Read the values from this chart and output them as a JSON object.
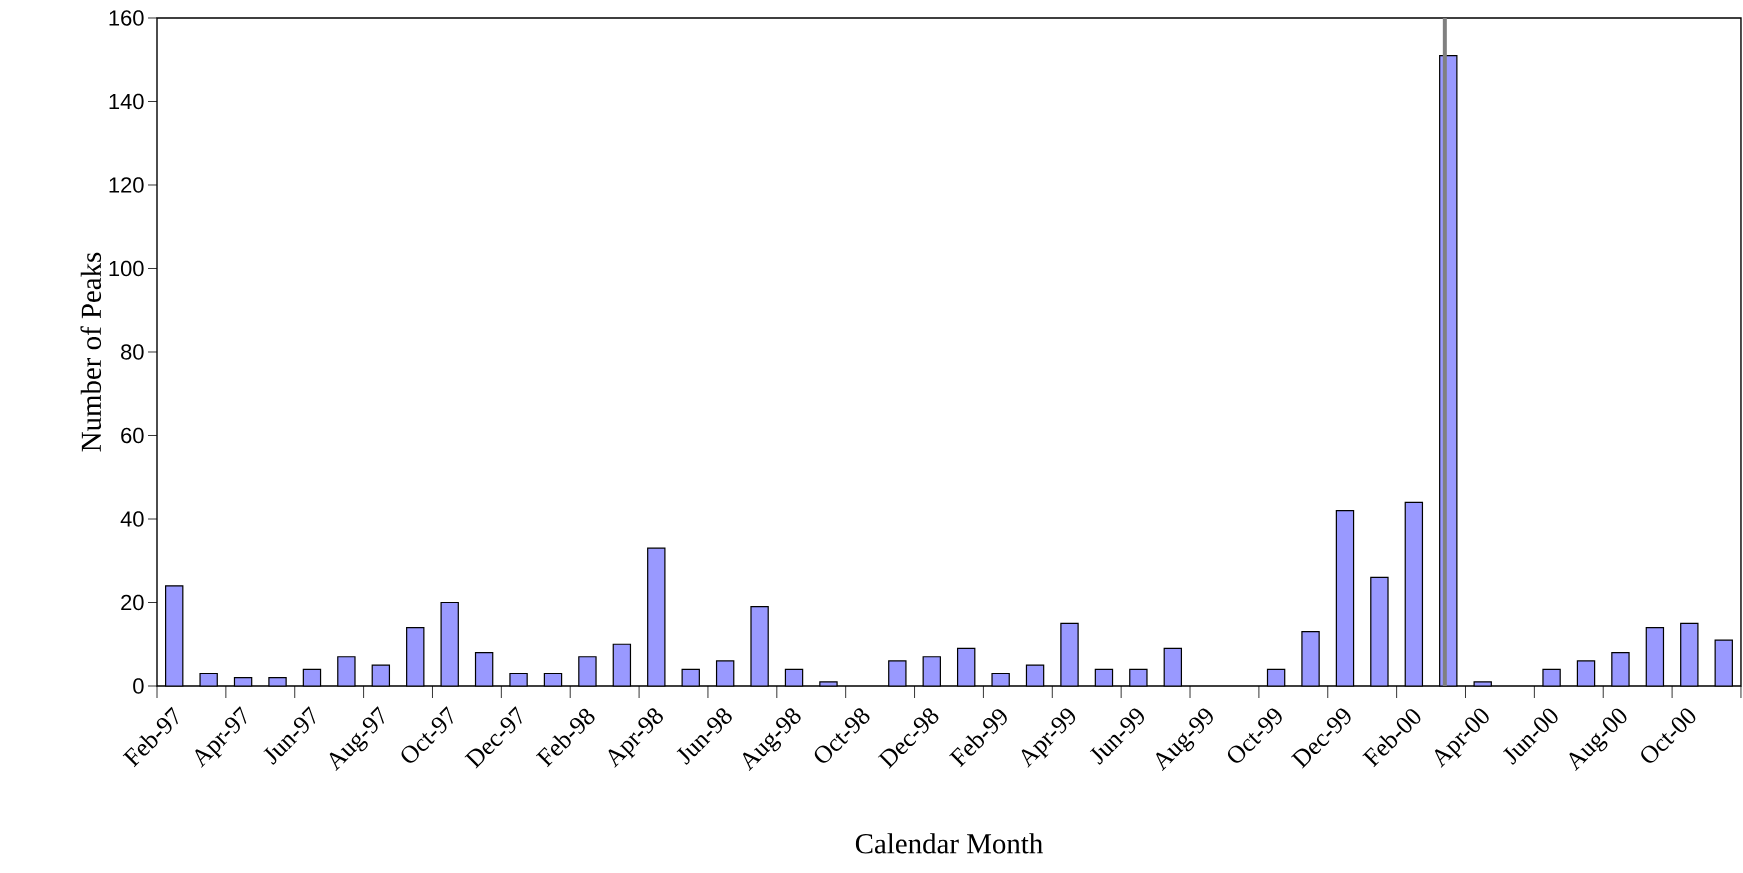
{
  "chart_data": {
    "type": "bar",
    "xlabel": "Calendar Month",
    "ylabel": "Number of Peaks",
    "categories": [
      "Feb-97",
      null,
      "Apr-97",
      null,
      "Jun-97",
      null,
      "Aug-97",
      null,
      "Oct-97",
      null,
      "Dec-97",
      null,
      "Feb-98",
      null,
      "Apr-98",
      null,
      "Jun-98",
      null,
      "Aug-98",
      null,
      "Oct-98",
      null,
      "Dec-98",
      null,
      "Feb-99",
      null,
      "Apr-99",
      null,
      "Jun-99",
      null,
      "Aug-99",
      null,
      "Oct-99",
      null,
      "Dec-99",
      null,
      "Feb-00",
      null,
      "Apr-00",
      null,
      "Jun-00",
      null,
      "Aug-00",
      null,
      "Oct-00",
      null
    ],
    "values": [
      24,
      3,
      2,
      2,
      4,
      7,
      5,
      14,
      20,
      8,
      3,
      3,
      7,
      10,
      33,
      4,
      6,
      19,
      4,
      1,
      0,
      6,
      7,
      9,
      3,
      5,
      15,
      4,
      4,
      9,
      0,
      0,
      4,
      13,
      42,
      26,
      44,
      151,
      1,
      0,
      4,
      6,
      8,
      14,
      15,
      11
    ],
    "color": "#9999ff",
    "ylim": [
      0,
      160
    ],
    "yticks": [
      0,
      20,
      40,
      60,
      80,
      100,
      120,
      140,
      160
    ],
    "grid": false
  }
}
